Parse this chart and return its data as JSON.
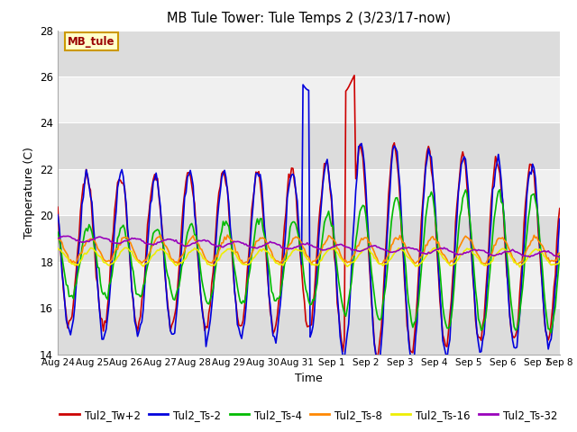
{
  "title": "MB Tule Tower: Tule Temps 2 (3/23/17-now)",
  "xlabel": "Time",
  "ylabel": "Temperature (C)",
  "ylim": [
    14,
    28
  ],
  "xlim": [
    0,
    352
  ],
  "bg_light": "#f0f0f0",
  "bg_dark": "#dcdcdc",
  "series_colors": {
    "Tul2_Tw+2": "#cc0000",
    "Tul2_Ts-2": "#0000dd",
    "Tul2_Ts-4": "#00bb00",
    "Tul2_Ts-8": "#ff8800",
    "Tul2_Ts-16": "#eeee00",
    "Tul2_Ts-32": "#9900bb"
  },
  "xtick_labels": [
    "Aug 24",
    "Aug 25",
    "Aug 26",
    "Aug 27",
    "Aug 28",
    "Aug 29",
    "Aug 30",
    "Aug 31",
    "Sep 1",
    "Sep 2",
    "Sep 3",
    "Sep 4",
    "Sep 5",
    "Sep 6",
    "Sep 7",
    "Sep 8"
  ],
  "xtick_positions": [
    0,
    24,
    48,
    72,
    96,
    120,
    144,
    168,
    192,
    216,
    240,
    264,
    288,
    312,
    336,
    352
  ],
  "ytick_positions": [
    14,
    16,
    18,
    20,
    22,
    24,
    26,
    28
  ],
  "annotation_text": "MB_tule",
  "annotation_box_color": "#ffffcc",
  "annotation_box_edge": "#cc9900"
}
